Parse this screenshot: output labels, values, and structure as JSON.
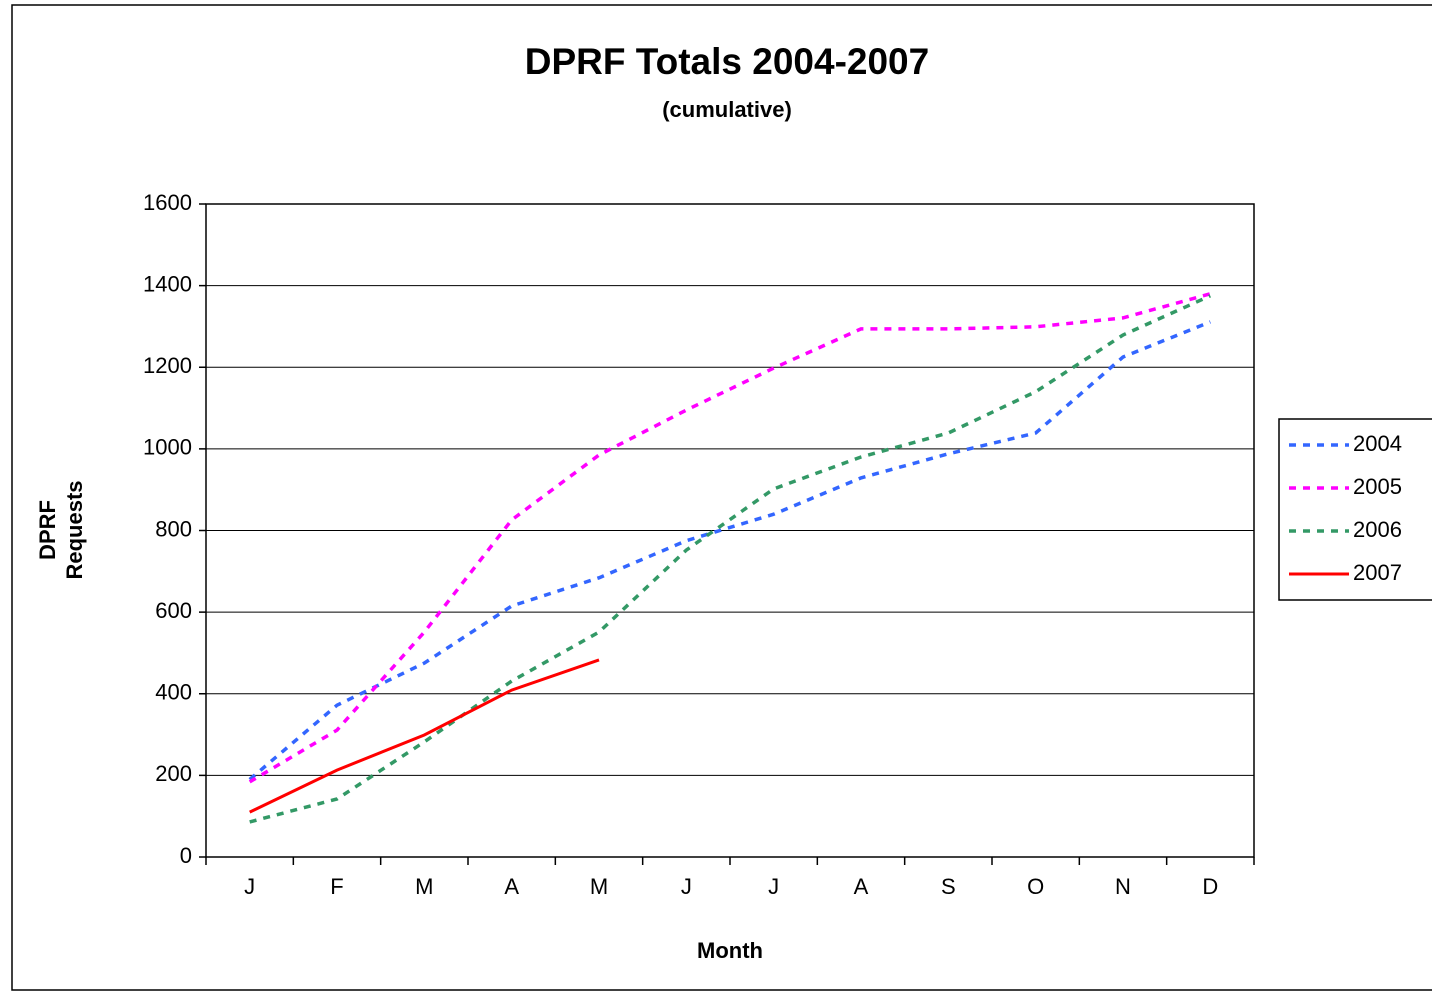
{
  "chart_data": {
    "type": "line",
    "title": "DPRF Totals 2004-2007",
    "subtitle": "(cumulative)",
    "xlabel": "Month",
    "ylabel": [
      "DPRF",
      "Requests"
    ],
    "categories": [
      "J",
      "F",
      "M",
      "A",
      "M",
      "J",
      "J",
      "A",
      "S",
      "O",
      "N",
      "D"
    ],
    "series": [
      {
        "name": "2004",
        "color": "#3366ff",
        "style": "dashed",
        "values": [
          190,
          372,
          475,
          615,
          684,
          775,
          840,
          929,
          988,
          1039,
          1225,
          1311
        ]
      },
      {
        "name": "2005",
        "color": "#ff00ff",
        "style": "dashed",
        "values": [
          184,
          311,
          551,
          826,
          985,
          1095,
          1198,
          1294,
          1294,
          1299,
          1321,
          1380
        ]
      },
      {
        "name": "2006",
        "color": "#339966",
        "style": "dashed",
        "values": [
          86,
          142,
          282,
          431,
          551,
          752,
          902,
          980,
          1039,
          1140,
          1279,
          1375
        ]
      },
      {
        "name": "2007",
        "color": "#ff0000",
        "style": "solid",
        "values": [
          110,
          213,
          299,
          409,
          483,
          null,
          null,
          null,
          null,
          null,
          null,
          null
        ]
      }
    ],
    "ylim": [
      0,
      1600
    ],
    "yticks": [
      0,
      200,
      400,
      600,
      800,
      1000,
      1200,
      1400,
      1600
    ],
    "grid": true,
    "legend": "right"
  }
}
